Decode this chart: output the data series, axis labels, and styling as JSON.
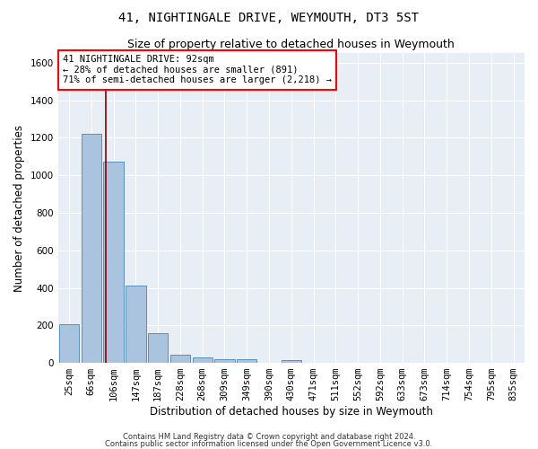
{
  "title": "41, NIGHTINGALE DRIVE, WEYMOUTH, DT3 5ST",
  "subtitle": "Size of property relative to detached houses in Weymouth",
  "xlabel": "Distribution of detached houses by size in Weymouth",
  "ylabel": "Number of detached properties",
  "footnote1": "Contains HM Land Registry data © Crown copyright and database right 2024.",
  "footnote2": "Contains public sector information licensed under the Open Government Licence v3.0.",
  "categories": [
    "25sqm",
    "66sqm",
    "106sqm",
    "147sqm",
    "187sqm",
    "228sqm",
    "268sqm",
    "309sqm",
    "349sqm",
    "390sqm",
    "430sqm",
    "471sqm",
    "511sqm",
    "552sqm",
    "592sqm",
    "633sqm",
    "673sqm",
    "714sqm",
    "754sqm",
    "795sqm",
    "835sqm"
  ],
  "values": [
    204,
    1222,
    1073,
    410,
    160,
    43,
    27,
    20,
    18,
    0,
    15,
    0,
    0,
    0,
    0,
    0,
    0,
    0,
    0,
    0,
    0
  ],
  "bar_color": "#aac4e0",
  "bar_edge_color": "#5a90bf",
  "annotation_text_line1": "41 NIGHTINGALE DRIVE: 92sqm",
  "annotation_text_line2": "← 28% of detached houses are smaller (891)",
  "annotation_text_line3": "71% of semi-detached houses are larger (2,218) →",
  "red_line_x": 1.67,
  "ylim": [
    0,
    1650
  ],
  "background_color": "#e8eef5",
  "grid_color": "#ffffff",
  "title_fontsize": 10,
  "subtitle_fontsize": 9,
  "xlabel_fontsize": 8.5,
  "ylabel_fontsize": 8.5,
  "tick_fontsize": 7.5,
  "annot_fontsize": 7.5
}
